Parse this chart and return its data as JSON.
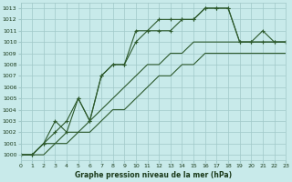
{
  "title": "Graphe pression niveau de la mer (hPa)",
  "bg_color": "#c8eaea",
  "grid_color": "#a0c8c8",
  "line_color": "#2d5a2d",
  "xlim": [
    0,
    23
  ],
  "ylim": [
    999.5,
    1013.5
  ],
  "yticks": [
    1000,
    1001,
    1002,
    1003,
    1004,
    1005,
    1006,
    1007,
    1008,
    1009,
    1010,
    1011,
    1012,
    1013
  ],
  "xticks": [
    0,
    1,
    2,
    3,
    4,
    5,
    6,
    7,
    8,
    9,
    10,
    11,
    12,
    13,
    14,
    15,
    16,
    17,
    18,
    19,
    20,
    21,
    22,
    23
  ],
  "lines": [
    {
      "x": [
        0,
        1,
        2,
        3,
        4,
        5,
        6,
        7,
        8,
        9,
        10,
        11,
        12,
        13,
        14,
        15,
        16,
        17,
        18,
        19,
        20,
        21,
        22,
        23
      ],
      "y": [
        1000,
        1000,
        1001,
        1003,
        1002,
        1005,
        1003,
        1007,
        1008,
        1008,
        1011,
        1011,
        1012,
        1012,
        1012,
        1012,
        1013,
        1013,
        1013,
        1010,
        1010,
        1011,
        1010,
        1010
      ]
    },
    {
      "x": [
        0,
        1,
        2,
        3,
        4,
        5,
        6,
        7,
        8,
        9,
        10,
        11,
        12,
        13,
        14,
        15,
        16,
        17,
        18,
        19,
        20,
        21,
        22,
        23
      ],
      "y": [
        1000,
        1000,
        1001,
        1002,
        1003,
        1005,
        1003,
        1007,
        1008,
        1008,
        1010,
        1011,
        1011,
        1011,
        1012,
        1012,
        1013,
        1013,
        1013,
        1010,
        1010,
        1010,
        1010,
        1010
      ]
    },
    {
      "x": [
        0,
        1,
        2,
        3,
        4,
        5,
        6,
        7,
        8,
        9,
        10,
        11,
        12,
        13,
        14,
        15,
        16,
        17,
        18,
        19,
        20,
        21,
        22,
        23
      ],
      "y": [
        1000,
        1000,
        1001,
        1001,
        1002,
        1002,
        1003,
        1004,
        1005,
        1006,
        1007,
        1008,
        1008,
        1009,
        1009,
        1010,
        1010,
        1010,
        1010,
        1010,
        1010,
        1010,
        1010,
        1010
      ]
    },
    {
      "x": [
        0,
        1,
        2,
        3,
        4,
        5,
        6,
        7,
        8,
        9,
        10,
        11,
        12,
        13,
        14,
        15,
        16,
        17,
        18,
        19,
        20,
        21,
        22,
        23
      ],
      "y": [
        1000,
        1000,
        1000,
        1001,
        1001,
        1002,
        1002,
        1003,
        1004,
        1004,
        1005,
        1006,
        1007,
        1007,
        1008,
        1008,
        1009,
        1009,
        1009,
        1009,
        1009,
        1009,
        1009,
        1009
      ]
    }
  ]
}
